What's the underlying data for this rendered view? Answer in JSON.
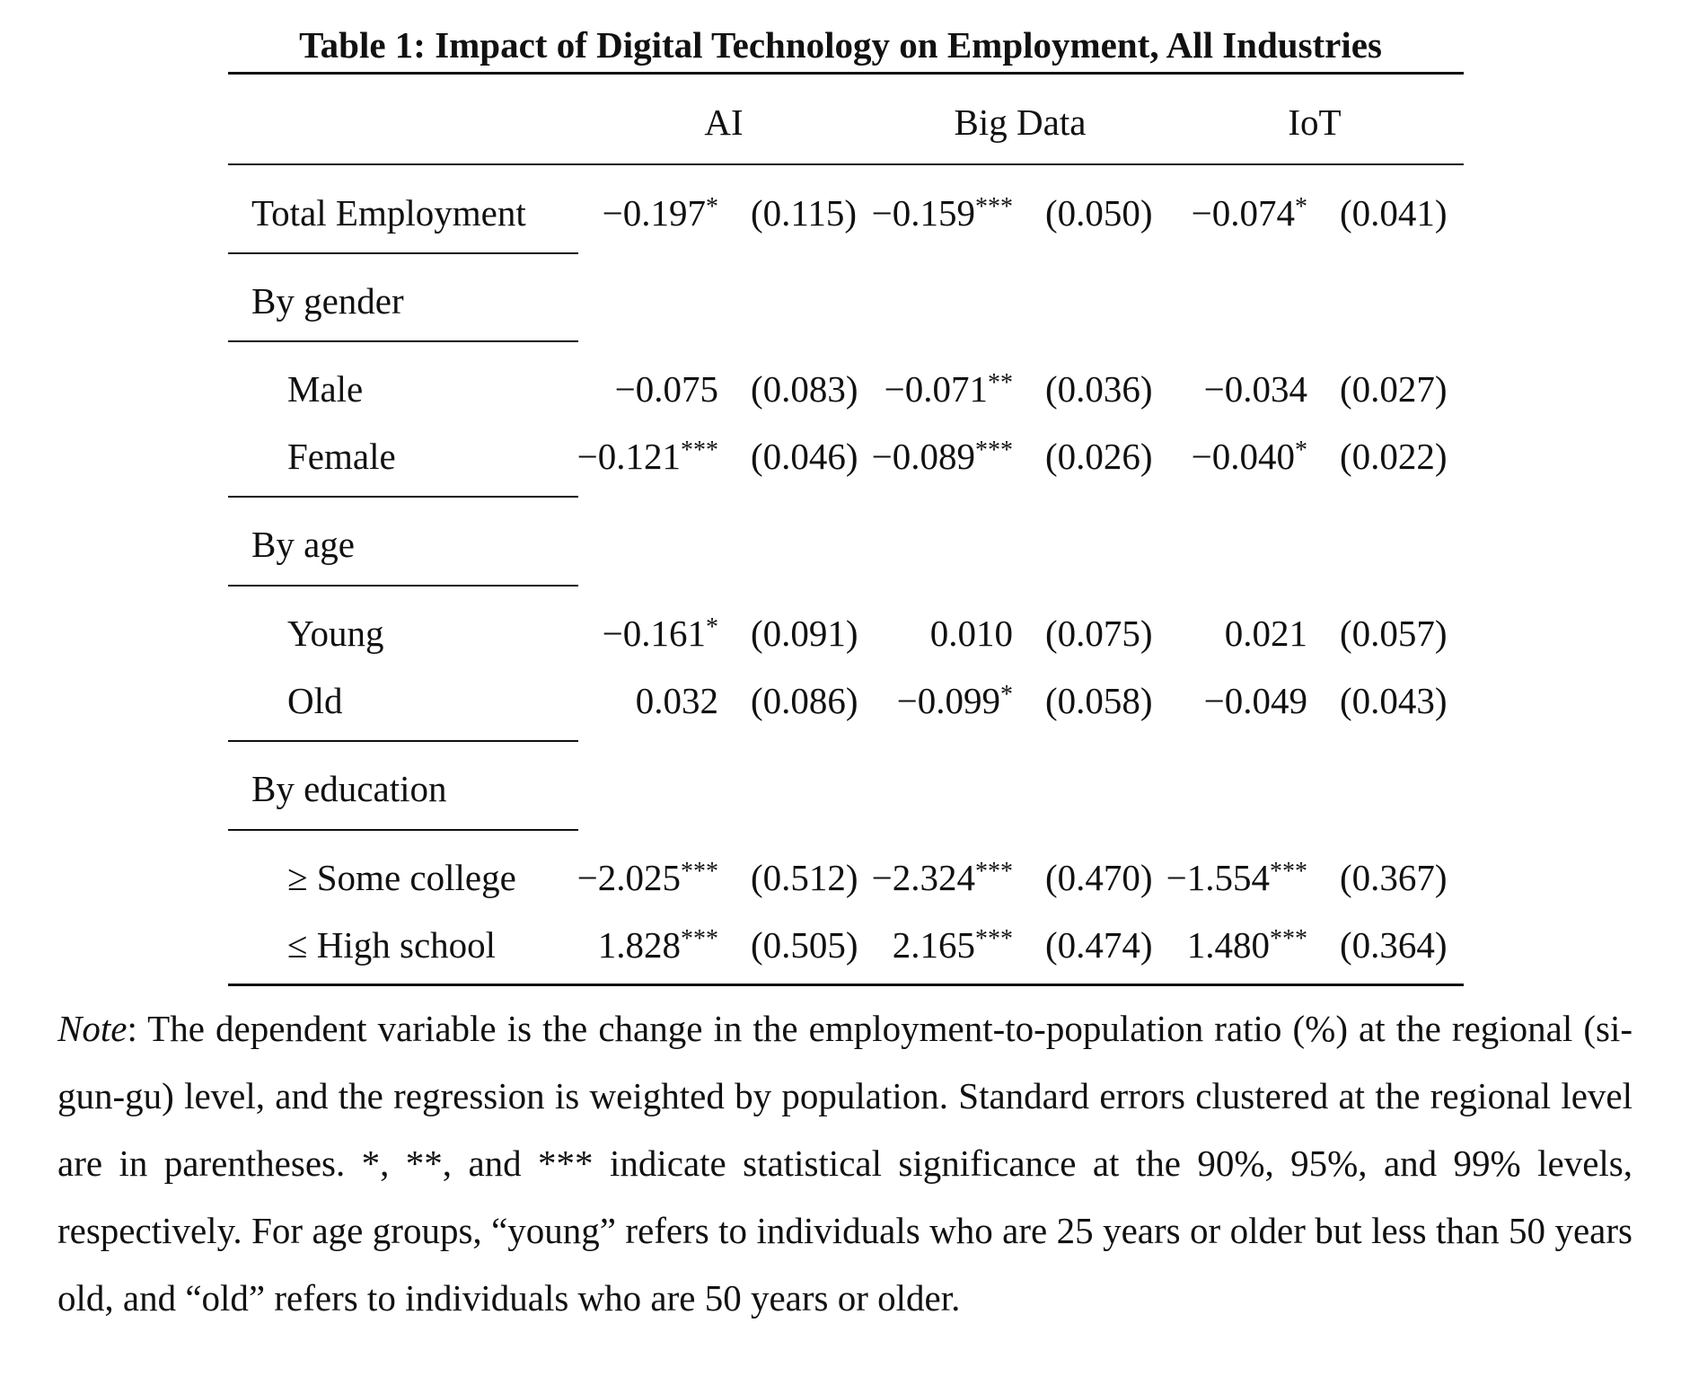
{
  "caption": "Table 1: Impact of Digital Technology on Employment, All Industries",
  "columns": [
    "AI",
    "Big Data",
    "IoT"
  ],
  "rows": {
    "total": {
      "label": "Total Employment",
      "ai": {
        "coef": "−0.197",
        "stars": "*",
        "se": "(0.115)"
      },
      "bd": {
        "coef": "−0.159",
        "stars": "***",
        "se": "(0.050)"
      },
      "iot": {
        "coef": "−0.074",
        "stars": "*",
        "se": "(0.041)"
      }
    },
    "by_gender": {
      "label": "By gender"
    },
    "male": {
      "label": "Male",
      "ai": {
        "coef": "−0.075",
        "stars": "",
        "se": "(0.083)"
      },
      "bd": {
        "coef": "−0.071",
        "stars": "**",
        "se": "(0.036)"
      },
      "iot": {
        "coef": "−0.034",
        "stars": "",
        "se": "(0.027)"
      }
    },
    "female": {
      "label": "Female",
      "ai": {
        "coef": "−0.121",
        "stars": "***",
        "se": "(0.046)"
      },
      "bd": {
        "coef": "−0.089",
        "stars": "***",
        "se": "(0.026)"
      },
      "iot": {
        "coef": "−0.040",
        "stars": "*",
        "se": "(0.022)"
      }
    },
    "by_age": {
      "label": "By age"
    },
    "young": {
      "label": "Young",
      "ai": {
        "coef": "−0.161",
        "stars": "*",
        "se": "(0.091)"
      },
      "bd": {
        "coef": "0.010",
        "stars": "",
        "se": "(0.075)"
      },
      "iot": {
        "coef": "0.021",
        "stars": "",
        "se": "(0.057)"
      }
    },
    "old": {
      "label": "Old",
      "ai": {
        "coef": "0.032",
        "stars": "",
        "se": "(0.086)"
      },
      "bd": {
        "coef": "−0.099",
        "stars": "*",
        "se": "(0.058)"
      },
      "iot": {
        "coef": "−0.049",
        "stars": "",
        "se": "(0.043)"
      }
    },
    "by_education": {
      "label": "By education"
    },
    "some_college": {
      "label": "≥ Some college",
      "ai": {
        "coef": "−2.025",
        "stars": "***",
        "se": "(0.512)"
      },
      "bd": {
        "coef": "−2.324",
        "stars": "***",
        "se": "(0.470)"
      },
      "iot": {
        "coef": "−1.554",
        "stars": "***",
        "se": "(0.367)"
      }
    },
    "high_school": {
      "label": "≤ High school",
      "ai": {
        "coef": "1.828",
        "stars": "***",
        "se": "(0.505)"
      },
      "bd": {
        "coef": "2.165",
        "stars": "***",
        "se": "(0.474)"
      },
      "iot": {
        "coef": "1.480",
        "stars": "***",
        "se": "(0.364)"
      }
    }
  },
  "note": {
    "lead": "Note",
    "text": ": The dependent variable is the change in the employment-to-population ratio (%) at the regional (si-gun-gu) level, and the regression is weighted by population. Standard errors clus­tered at the regional level are in parentheses. *, **, and *** indicate statistical significance at the 90%, 95%, and 99% levels, respectively. For age groups, “young” refers to individuals who are 25 years or older but less than 50 years old, and “old” refers to individuals who are 50 years or older."
  }
}
